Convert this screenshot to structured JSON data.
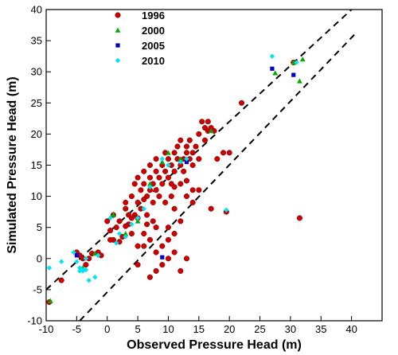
{
  "chart_data": {
    "type": "scatter",
    "xlabel": "Observed Pressure Head (m)",
    "ylabel": "Simulated Pressure Head (m)",
    "xlim": [
      -10,
      45
    ],
    "ylim": [
      -10,
      40
    ],
    "xticks": [
      -10,
      -5,
      0,
      5,
      10,
      15,
      20,
      25,
      30,
      35,
      40
    ],
    "yticks": [
      -10,
      -5,
      0,
      5,
      10,
      15,
      20,
      25,
      30,
      35,
      40
    ],
    "xtick_labels": [
      "-10",
      "-5",
      "0",
      "5",
      "10",
      "15",
      "20",
      "25",
      "30",
      "35",
      "40"
    ],
    "ytick_labels": [
      "-10",
      "-5",
      "0",
      "5",
      "10",
      "15",
      "20",
      "25",
      "30",
      "35",
      "40"
    ],
    "legend_position": "top-left",
    "reference_lines": [
      {
        "style": "dashed",
        "points": [
          [
            -10,
            -5
          ],
          [
            40,
            40
          ]
        ]
      },
      {
        "style": "dashed",
        "points": [
          [
            -4.5,
            -10
          ],
          [
            40.5,
            36
          ]
        ]
      }
    ],
    "series": [
      {
        "name": "1996",
        "marker": "circle",
        "color": "#cc0000",
        "points": [
          [
            -9.5,
            -7
          ],
          [
            -7.5,
            -3.5
          ],
          [
            -5,
            1
          ],
          [
            -4.5,
            0.5
          ],
          [
            -4,
            0
          ],
          [
            -3.5,
            -1
          ],
          [
            -3,
            0
          ],
          [
            -2.5,
            0.8
          ],
          [
            -1.5,
            1
          ],
          [
            -1,
            0.5
          ],
          [
            0,
            6
          ],
          [
            0.5,
            4.5
          ],
          [
            1,
            7
          ],
          [
            1.5,
            5
          ],
          [
            2,
            6
          ],
          [
            2.5,
            3.5
          ],
          [
            3,
            8
          ],
          [
            3,
            9
          ],
          [
            3.5,
            5.5
          ],
          [
            3.5,
            7
          ],
          [
            4,
            10
          ],
          [
            4,
            4
          ],
          [
            4.5,
            7
          ],
          [
            4.5,
            12
          ],
          [
            5,
            9
          ],
          [
            5,
            6.5
          ],
          [
            5,
            13
          ],
          [
            5.5,
            11
          ],
          [
            5.5,
            8
          ],
          [
            6,
            14
          ],
          [
            6,
            9.5
          ],
          [
            6,
            12
          ],
          [
            6.5,
            10
          ],
          [
            6.5,
            7
          ],
          [
            7,
            11
          ],
          [
            7,
            15
          ],
          [
            7,
            13
          ],
          [
            7.5,
            12
          ],
          [
            7.5,
            9
          ],
          [
            8,
            16
          ],
          [
            8,
            11
          ],
          [
            8,
            14
          ],
          [
            8.5,
            13
          ],
          [
            8.5,
            10
          ],
          [
            9,
            15
          ],
          [
            9,
            12
          ],
          [
            9.5,
            17
          ],
          [
            9.5,
            14
          ],
          [
            10,
            16
          ],
          [
            10,
            13
          ],
          [
            10.5,
            15
          ],
          [
            10.5,
            12
          ],
          [
            11,
            17
          ],
          [
            11,
            14
          ],
          [
            11.5,
            16
          ],
          [
            11.5,
            18
          ],
          [
            12,
            15
          ],
          [
            12,
            19
          ],
          [
            12.5,
            16
          ],
          [
            12.5,
            14
          ],
          [
            13,
            17
          ],
          [
            13,
            18
          ],
          [
            13.5,
            16
          ],
          [
            13.5,
            19
          ],
          [
            14,
            15
          ],
          [
            14,
            17
          ],
          [
            14.5,
            18
          ],
          [
            15,
            16
          ],
          [
            15,
            20
          ],
          [
            15.5,
            22
          ],
          [
            16,
            19
          ],
          [
            16,
            21
          ],
          [
            16.5,
            22
          ],
          [
            17,
            21
          ],
          [
            17.5,
            20.5
          ],
          [
            18,
            16
          ],
          [
            19,
            17
          ],
          [
            20,
            17
          ],
          [
            22,
            25
          ],
          [
            7,
            -3
          ],
          [
            8,
            -2
          ],
          [
            9,
            -1
          ],
          [
            10,
            0
          ],
          [
            11,
            1
          ],
          [
            12,
            -2
          ],
          [
            13,
            0
          ],
          [
            6,
            2
          ],
          [
            7,
            3
          ],
          [
            8,
            1
          ],
          [
            5,
            -1
          ],
          [
            9,
            2
          ],
          [
            10,
            5
          ],
          [
            11,
            8
          ],
          [
            12,
            12
          ],
          [
            13,
            10
          ],
          [
            14,
            9
          ],
          [
            15,
            11
          ],
          [
            17,
            8
          ],
          [
            19.5,
            7.5
          ],
          [
            31.5,
            6.5
          ],
          [
            30.5,
            31.5
          ],
          [
            16.5,
            20.5
          ],
          [
            8,
            5
          ],
          [
            10,
            3
          ],
          [
            11,
            4
          ],
          [
            12,
            6
          ],
          [
            14,
            11
          ],
          [
            6,
            4
          ],
          [
            5,
            2
          ],
          [
            4,
            6.5
          ],
          [
            6.5,
            5.5
          ],
          [
            7.5,
            6
          ],
          [
            9.5,
            9
          ],
          [
            10.5,
            10
          ],
          [
            13,
            12.5
          ],
          [
            3,
            5.2
          ],
          [
            2,
            2.7
          ],
          [
            1,
            3
          ],
          [
            0.5,
            3
          ],
          [
            11,
            11.5
          ]
        ]
      },
      {
        "name": "2000",
        "marker": "triangle",
        "color": "#00aa00",
        "points": [
          [
            -9.3,
            -6.8
          ],
          [
            -2,
            0.8
          ],
          [
            3,
            4
          ],
          [
            5,
            6
          ],
          [
            7,
            12
          ],
          [
            9,
            15.5
          ],
          [
            10,
            17
          ],
          [
            12,
            16
          ],
          [
            17,
            20.5
          ],
          [
            27.5,
            29.8
          ],
          [
            30.5,
            31.5
          ],
          [
            31.5,
            28.5
          ],
          [
            32,
            32
          ],
          [
            -4,
            -1.5
          ],
          [
            1,
            7
          ]
        ]
      },
      {
        "name": "2005",
        "marker": "square",
        "color": "#0000cc",
        "points": [
          [
            27,
            30.5
          ],
          [
            30.5,
            29.5
          ],
          [
            9,
            0.2
          ],
          [
            13,
            15.5
          ],
          [
            -5,
            0.5
          ]
        ]
      },
      {
        "name": "2010",
        "marker": "diamond",
        "color": "#00e5ee",
        "points": [
          [
            -9.5,
            -1.5
          ],
          [
            -7.5,
            -0.5
          ],
          [
            -5.5,
            1
          ],
          [
            -5,
            -0.5
          ],
          [
            -4.5,
            -1.5
          ],
          [
            -4,
            -2
          ],
          [
            -3.5,
            0
          ],
          [
            -3,
            -3.5
          ],
          [
            -2,
            -3
          ],
          [
            -1.5,
            0.5
          ],
          [
            0.5,
            6.5
          ],
          [
            2,
            4
          ],
          [
            3,
            3.5
          ],
          [
            4,
            5.5
          ],
          [
            5,
            6.5
          ],
          [
            6,
            8
          ],
          [
            7,
            11.5
          ],
          [
            9,
            16
          ],
          [
            10,
            15
          ],
          [
            12,
            15.5
          ],
          [
            13,
            16
          ],
          [
            19.5,
            7.8
          ],
          [
            27,
            32.5
          ],
          [
            31,
            31.5
          ],
          [
            -4,
            -1.8
          ],
          [
            -3.5,
            -1.8
          ],
          [
            -4.5,
            -2
          ],
          [
            1.5,
            2.5
          ]
        ]
      }
    ]
  }
}
